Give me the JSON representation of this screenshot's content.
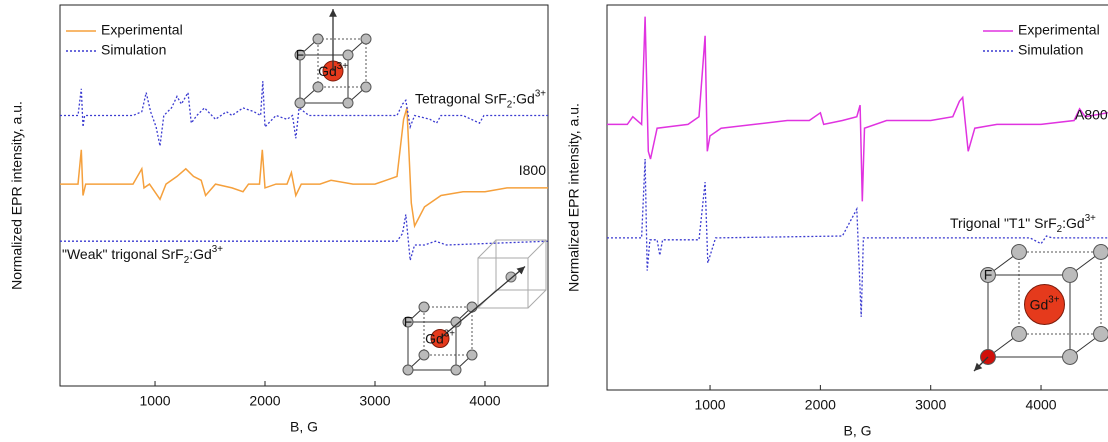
{
  "chart_data": [
    {
      "type": "line",
      "x_label": "B, G",
      "y_label": "Normalized EPR intensity, a.u.",
      "xlim": [
        136,
        4573
      ],
      "xticks": [
        1000,
        2000,
        3000,
        4000
      ],
      "ylim": [
        0,
        100
      ],
      "legend_loc": "upper left",
      "series": [
        {
          "name": "Experimental",
          "color": "#f5a03c",
          "dash": false,
          "label": [
            {
              "t": "I800"
            }
          ],
          "x": [
            136,
            300,
            330,
            345,
            370,
            800,
            880,
            900,
            950,
            1045,
            1100,
            1200,
            1280,
            1350,
            1420,
            1460,
            1550,
            1700,
            1800,
            1850,
            1950,
            1975,
            2000,
            2100,
            2200,
            2240,
            2280,
            2330,
            2500,
            2600,
            2800,
            3000,
            3100,
            3200,
            3260,
            3290,
            3330,
            3360,
            3450,
            3600,
            3800,
            4000,
            4200,
            4573
          ],
          "values": [
            53,
            53,
            62,
            50,
            53,
            53,
            57,
            52,
            53,
            49,
            53,
            55,
            57,
            55,
            54,
            50,
            53,
            52,
            51,
            53,
            53,
            62,
            52,
            53,
            53,
            56,
            50,
            53,
            53,
            54,
            53,
            53,
            54,
            55,
            70,
            73,
            48,
            42,
            47,
            50,
            51,
            51,
            52,
            52
          ]
        },
        {
          "name": "Simulation",
          "color": "#3a3ad0",
          "dash": true,
          "label": [
            {
              "t": "Tetragonal SrF"
            },
            {
              "sub": "2"
            },
            {
              "t": ":Gd"
            },
            {
              "sup": "3+"
            }
          ],
          "x": [
            136,
            300,
            330,
            345,
            360,
            800,
            880,
            920,
            960,
            1010,
            1045,
            1080,
            1150,
            1200,
            1240,
            1300,
            1330,
            1380,
            1450,
            1550,
            1650,
            1700,
            1800,
            1900,
            1960,
            1980,
            2000,
            2100,
            2200,
            2250,
            2280,
            2310,
            2400,
            2600,
            2800,
            3000,
            3200,
            3250,
            3280,
            3320,
            3360,
            3500,
            3560,
            3600,
            3800,
            3950,
            3990,
            4200,
            4573
          ],
          "values": [
            71,
            71,
            78,
            68,
            71,
            71,
            72,
            77,
            72,
            68,
            63,
            71,
            73,
            76,
            74,
            77,
            69,
            71,
            73,
            70,
            72,
            71,
            73,
            72,
            71,
            80,
            68,
            71,
            70,
            71,
            65,
            73,
            71,
            71,
            71,
            71,
            71,
            74,
            75,
            68,
            71,
            70,
            69,
            71,
            71,
            69,
            71,
            71,
            71
          ]
        },
        {
          "name": "Simulation",
          "color": "#3a3ad0",
          "dash": true,
          "label": [
            {
              "t": "\"Weak\" trigonal SrF"
            },
            {
              "sub": "2"
            },
            {
              "t": ":Gd"
            },
            {
              "sup": "3+"
            }
          ],
          "x": [
            136,
            3200,
            3250,
            3280,
            3320,
            3360,
            3450,
            3550,
            3650,
            4573
          ],
          "values": [
            38,
            38,
            40,
            45,
            33,
            37,
            37,
            38,
            37,
            38
          ]
        }
      ],
      "insets": [
        {
          "corner": "F",
          "center": [
            {
              "t": "Gd"
            },
            {
              "sup": "3+"
            }
          ]
        },
        {
          "corner": "F",
          "center": [
            {
              "t": "Gd"
            },
            {
              "sup": "3+"
            }
          ]
        }
      ]
    },
    {
      "type": "line",
      "x_label": "B, G",
      "y_label": "Normalized EPR intensity, a.u.",
      "xlim": [
        66,
        4607
      ],
      "xticks": [
        1000,
        2000,
        3000,
        4000
      ],
      "ylim": [
        0,
        100
      ],
      "legend_loc": "upper right",
      "series": [
        {
          "name": "Experimental",
          "color": "#e033e0",
          "dash": false,
          "label": [
            {
              "t": "A800"
            }
          ],
          "x": [
            66,
            250,
            300,
            380,
            411,
            440,
            460,
            520,
            800,
            900,
            955,
            975,
            1000,
            1100,
            1400,
            1700,
            1900,
            2000,
            2030,
            2200,
            2330,
            2360,
            2380,
            2400,
            2600,
            3000,
            3200,
            3260,
            3290,
            3340,
            3400,
            3600,
            4000,
            4300,
            4350,
            4400,
            4607
          ],
          "values": [
            69,
            69,
            71,
            69,
            97,
            62,
            60,
            68,
            69,
            71,
            92,
            62,
            66,
            68,
            69,
            70,
            70,
            72,
            69,
            70,
            71,
            74,
            49,
            68,
            70,
            70,
            71,
            75,
            76,
            62,
            68,
            69,
            69,
            70,
            73,
            71,
            72
          ]
        },
        {
          "name": "Simulation",
          "color": "#3a3ad0",
          "dash": true,
          "label": [
            {
              "t": "Trigonal \"T1\" SrF"
            },
            {
              "sub": "2"
            },
            {
              "t": ":Gd"
            },
            {
              "sup": "3+"
            }
          ],
          "x": [
            66,
            380,
            411,
            430,
            455,
            520,
            545,
            570,
            900,
            955,
            980,
            1050,
            2200,
            2330,
            2370,
            2390,
            2420,
            3000,
            3900,
            4000,
            4050,
            4100,
            4607
          ],
          "values": [
            39.5,
            39.5,
            60,
            31,
            39,
            39,
            35,
            39,
            39,
            54,
            33,
            39.5,
            40,
            47,
            19,
            39.5,
            39.5,
            39.5,
            39.5,
            38,
            40,
            39.5,
            39.5
          ]
        }
      ],
      "insets": [
        {
          "corner": "F",
          "center": [
            {
              "t": "Gd"
            },
            {
              "sup": "3+"
            }
          ]
        }
      ]
    }
  ]
}
